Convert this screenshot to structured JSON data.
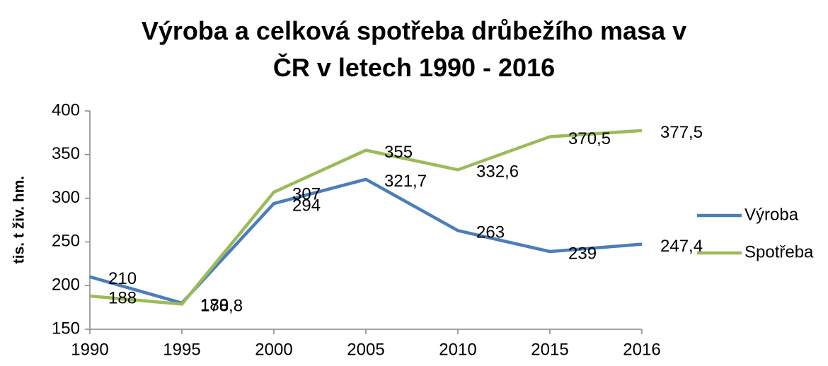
{
  "chart_data": {
    "type": "line",
    "title": "Výroba a celková spotřeba drůbežího masa v ČR v letech 1990 - 2016",
    "y_label": "tis. t živ. hm.",
    "categories": [
      "1990",
      "1995",
      "2000",
      "2005",
      "2010",
      "2015",
      "2016"
    ],
    "series": [
      {
        "name": "Výroba",
        "color": "#4a7ebb",
        "values": [
          210,
          180,
          294,
          321.7,
          263,
          239,
          247.4
        ],
        "value_labels": [
          "210",
          "180",
          "294",
          "321,7",
          "263",
          "239",
          "247,4"
        ]
      },
      {
        "name": "Spotřeba",
        "color": "#9bbb59",
        "values": [
          188,
          178.8,
          307,
          355,
          332.6,
          370.5,
          377.5
        ],
        "value_labels": [
          "188",
          "178,8",
          "307",
          "355",
          "332,6",
          "370,5",
          "377,5"
        ]
      }
    ],
    "ylim": [
      150,
      400
    ],
    "yticks": [
      150,
      200,
      250,
      300,
      350,
      400
    ],
    "grid": false,
    "legend": "right"
  }
}
